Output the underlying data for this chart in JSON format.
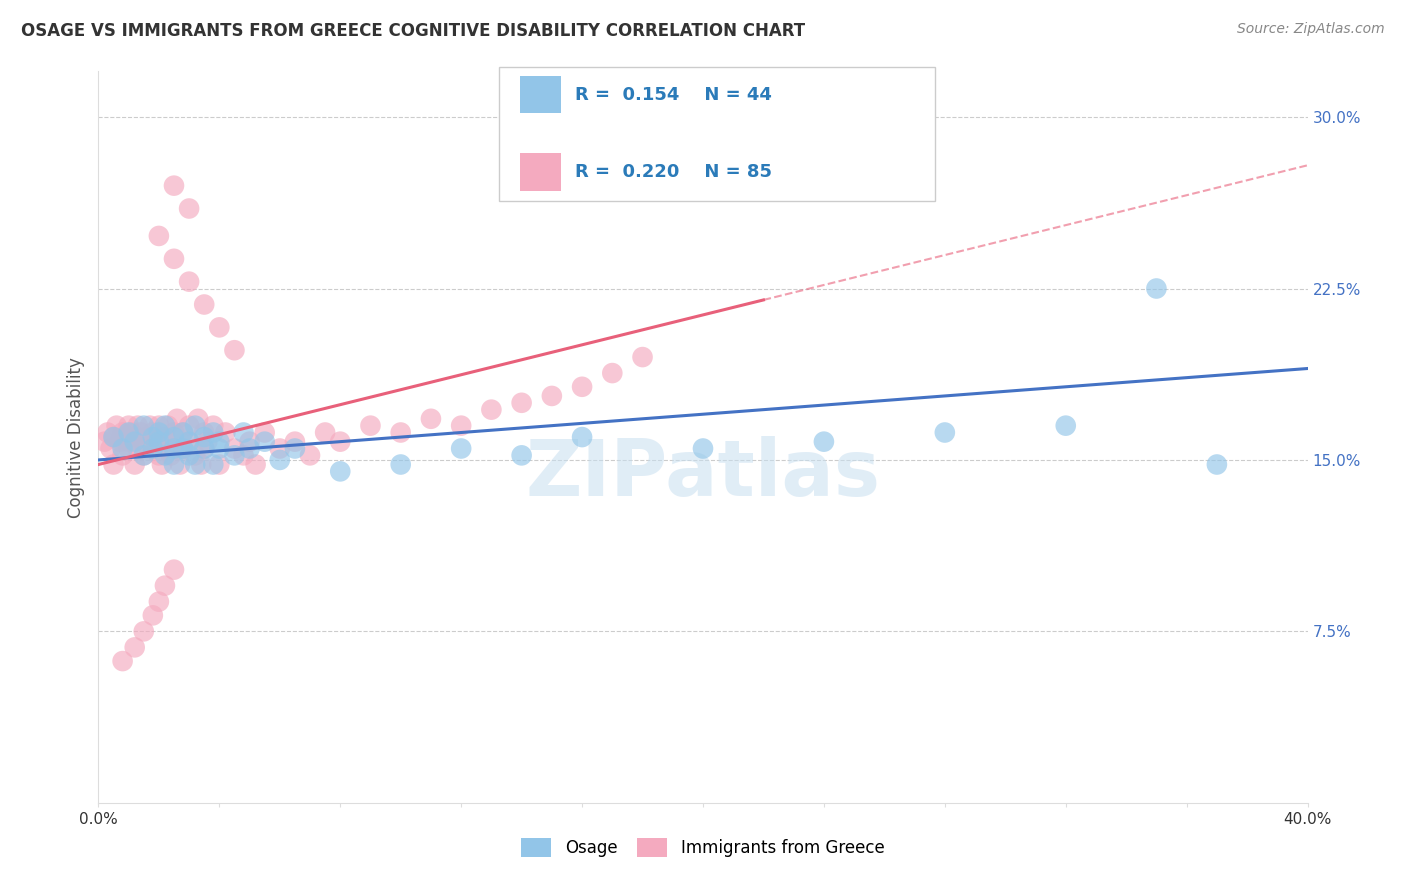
{
  "title": "OSAGE VS IMMIGRANTS FROM GREECE COGNITIVE DISABILITY CORRELATION CHART",
  "source": "Source: ZipAtlas.com",
  "ylabel": "Cognitive Disability",
  "xlim": [
    0.0,
    0.4
  ],
  "ylim": [
    0.0,
    0.32
  ],
  "yticks": [
    0.075,
    0.15,
    0.225,
    0.3
  ],
  "ytick_labels": [
    "7.5%",
    "15.0%",
    "22.5%",
    "30.0%"
  ],
  "xticks": [
    0.0,
    0.04,
    0.08,
    0.12,
    0.16,
    0.2,
    0.24,
    0.28,
    0.32,
    0.36,
    0.4
  ],
  "xtick_labels": [
    "0.0%",
    "",
    "",
    "",
    "",
    "",
    "",
    "",
    "",
    "",
    "40.0%"
  ],
  "grid_color": "#cccccc",
  "background_color": "#ffffff",
  "watermark": "ZIPatlas",
  "legend_R_blue": "0.154",
  "legend_N_blue": "44",
  "legend_R_pink": "0.220",
  "legend_N_pink": "85",
  "blue_color": "#92C5E8",
  "pink_color": "#F4AABF",
  "blue_line_color": "#4472C4",
  "pink_line_color": "#E8607A",
  "osage_x": [
    0.005,
    0.008,
    0.01,
    0.012,
    0.015,
    0.015,
    0.018,
    0.018,
    0.02,
    0.02,
    0.022,
    0.022,
    0.025,
    0.025,
    0.025,
    0.028,
    0.028,
    0.03,
    0.03,
    0.032,
    0.032,
    0.035,
    0.035,
    0.038,
    0.038,
    0.04,
    0.04,
    0.045,
    0.048,
    0.05,
    0.055,
    0.06,
    0.065,
    0.08,
    0.1,
    0.12,
    0.14,
    0.16,
    0.2,
    0.24,
    0.28,
    0.32,
    0.35,
    0.37
  ],
  "osage_y": [
    0.16,
    0.155,
    0.162,
    0.158,
    0.165,
    0.152,
    0.16,
    0.155,
    0.162,
    0.158,
    0.165,
    0.152,
    0.16,
    0.155,
    0.148,
    0.162,
    0.155,
    0.158,
    0.152,
    0.165,
    0.148,
    0.16,
    0.155,
    0.162,
    0.148,
    0.158,
    0.155,
    0.152,
    0.162,
    0.155,
    0.158,
    0.15,
    0.155,
    0.145,
    0.148,
    0.155,
    0.152,
    0.16,
    0.155,
    0.158,
    0.162,
    0.165,
    0.225,
    0.148
  ],
  "greece_x": [
    0.002,
    0.003,
    0.004,
    0.005,
    0.005,
    0.006,
    0.007,
    0.008,
    0.008,
    0.009,
    0.01,
    0.01,
    0.01,
    0.011,
    0.012,
    0.012,
    0.013,
    0.013,
    0.014,
    0.015,
    0.015,
    0.016,
    0.017,
    0.018,
    0.018,
    0.019,
    0.02,
    0.02,
    0.021,
    0.022,
    0.022,
    0.023,
    0.024,
    0.025,
    0.025,
    0.026,
    0.027,
    0.028,
    0.028,
    0.03,
    0.03,
    0.032,
    0.033,
    0.034,
    0.035,
    0.035,
    0.036,
    0.038,
    0.04,
    0.042,
    0.045,
    0.048,
    0.05,
    0.052,
    0.055,
    0.06,
    0.065,
    0.07,
    0.075,
    0.08,
    0.09,
    0.1,
    0.11,
    0.12,
    0.13,
    0.14,
    0.15,
    0.16,
    0.17,
    0.18,
    0.02,
    0.025,
    0.03,
    0.035,
    0.04,
    0.045,
    0.025,
    0.03,
    0.008,
    0.012,
    0.015,
    0.018,
    0.02,
    0.022,
    0.025
  ],
  "greece_y": [
    0.158,
    0.162,
    0.155,
    0.16,
    0.148,
    0.165,
    0.158,
    0.162,
    0.152,
    0.16,
    0.165,
    0.158,
    0.155,
    0.162,
    0.16,
    0.148,
    0.165,
    0.155,
    0.162,
    0.158,
    0.152,
    0.16,
    0.165,
    0.155,
    0.162,
    0.158,
    0.152,
    0.165,
    0.148,
    0.16,
    0.158,
    0.165,
    0.152,
    0.162,
    0.155,
    0.168,
    0.148,
    0.162,
    0.155,
    0.158,
    0.165,
    0.152,
    0.168,
    0.148,
    0.162,
    0.155,
    0.158,
    0.165,
    0.148,
    0.162,
    0.155,
    0.152,
    0.158,
    0.148,
    0.162,
    0.155,
    0.158,
    0.152,
    0.162,
    0.158,
    0.165,
    0.162,
    0.168,
    0.165,
    0.172,
    0.175,
    0.178,
    0.182,
    0.188,
    0.195,
    0.248,
    0.238,
    0.228,
    0.218,
    0.208,
    0.198,
    0.27,
    0.26,
    0.062,
    0.068,
    0.075,
    0.082,
    0.088,
    0.095,
    0.102
  ],
  "pink_line_solid_end": 0.22,
  "pink_line_dashed_end": 0.4,
  "blue_line_start": 0.0,
  "blue_line_end": 0.4
}
